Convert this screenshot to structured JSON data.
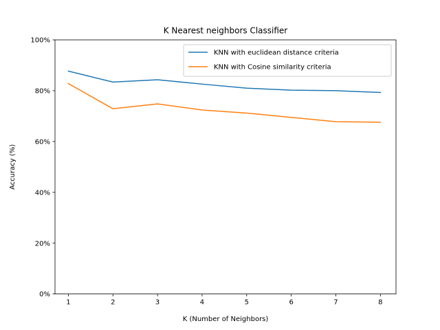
{
  "chart_data": {
    "type": "line",
    "title": "K Nearest neighbors Classifier",
    "xlabel": "K (Number of Neighbors)",
    "ylabel": "Accuracy (%)",
    "x": [
      1,
      2,
      3,
      4,
      5,
      6,
      7,
      8
    ],
    "xlim": [
      0.7,
      8.35
    ],
    "ylim": [
      0,
      100
    ],
    "yticks": [
      0,
      20,
      40,
      60,
      80,
      100
    ],
    "ytick_labels": [
      "0%",
      "20%",
      "40%",
      "60%",
      "80%",
      "100%"
    ],
    "xtick_labels": [
      "1",
      "2",
      "3",
      "4",
      "5",
      "6",
      "7",
      "8"
    ],
    "grid": false,
    "legend_position": "top-right",
    "series": [
      {
        "name": "KNN with euclidean distance criteria",
        "color": "#1f77b4",
        "values": [
          87.7,
          83.4,
          84.3,
          82.6,
          81.0,
          80.2,
          80.0,
          79.3
        ]
      },
      {
        "name": "KNN with Cosine similarity criteria",
        "color": "#ff7f0e",
        "values": [
          82.8,
          72.9,
          74.8,
          72.4,
          71.2,
          69.5,
          67.8,
          67.6
        ]
      }
    ]
  }
}
